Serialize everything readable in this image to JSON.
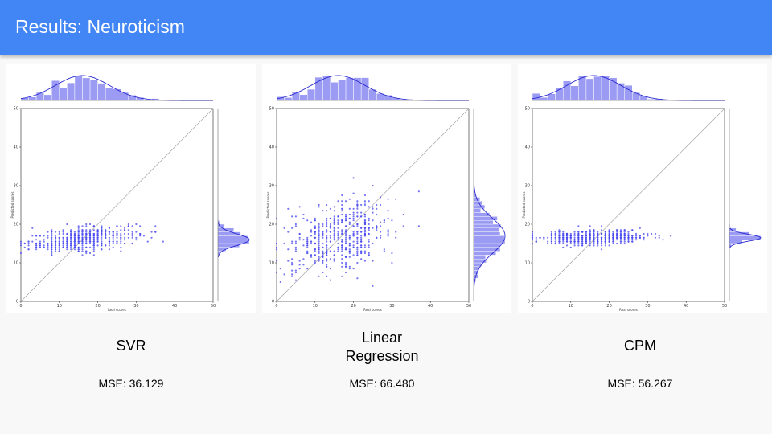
{
  "header": {
    "title": "Results: Neuroticism"
  },
  "chart_data": [
    {
      "type": "scatter",
      "xlabel": "Real scores",
      "ylabel": "Predicted scores",
      "xlim": [
        0,
        50
      ],
      "ylim": [
        0,
        50
      ],
      "xticks": [
        0,
        10,
        20,
        30,
        40,
        50
      ],
      "yticks": [
        0,
        10,
        20,
        30,
        40,
        50
      ],
      "identity_line": true,
      "point_color": "#4a4af0",
      "marginal_x": {
        "type": "histogram+kde",
        "center": 16,
        "spread": 7
      },
      "marginal_y": {
        "type": "histogram+kde",
        "center": 16,
        "spread": 1.5
      },
      "prediction": {
        "slope": 0.1,
        "intercept": 14.5,
        "noise": 1.5,
        "yrange": [
          12,
          20
        ]
      },
      "model": "SVR",
      "mse": "MSE: 36.129"
    },
    {
      "type": "scatter",
      "xlabel": "Real scores",
      "ylabel": "Predicted scores",
      "xlim": [
        0,
        50
      ],
      "ylim": [
        0,
        50
      ],
      "xticks": [
        0,
        10,
        20,
        30,
        40,
        50
      ],
      "yticks": [
        0,
        10,
        20,
        30,
        40,
        50
      ],
      "identity_line": true,
      "point_color": "#4a4af0",
      "marginal_x": {
        "type": "histogram+kde",
        "center": 16,
        "spread": 7
      },
      "marginal_y": {
        "type": "histogram+kde",
        "center": 17,
        "spread": 4.5
      },
      "prediction": {
        "slope": 0.2,
        "intercept": 13.5,
        "noise": 4.5,
        "yrange": [
          4,
          32
        ]
      },
      "model": "Linear\nRegression",
      "mse": "MSE: 66.480"
    },
    {
      "type": "scatter",
      "xlabel": "Real scores",
      "ylabel": "Predicted scores",
      "xlim": [
        0,
        50
      ],
      "ylim": [
        0,
        50
      ],
      "xticks": [
        0,
        10,
        20,
        30,
        40,
        50
      ],
      "yticks": [
        0,
        10,
        20,
        30,
        40,
        50
      ],
      "identity_line": true,
      "point_color": "#4a4af0",
      "marginal_x": {
        "type": "histogram+kde",
        "center": 16,
        "spread": 7
      },
      "marginal_y": {
        "type": "histogram+kde",
        "center": 16.5,
        "spread": 0.9
      },
      "prediction": {
        "slope": 0.02,
        "intercept": 16.2,
        "noise": 0.9,
        "yrange": [
          13.5,
          19.5
        ]
      },
      "model": "CPM",
      "mse": "MSE: 56.267"
    }
  ]
}
